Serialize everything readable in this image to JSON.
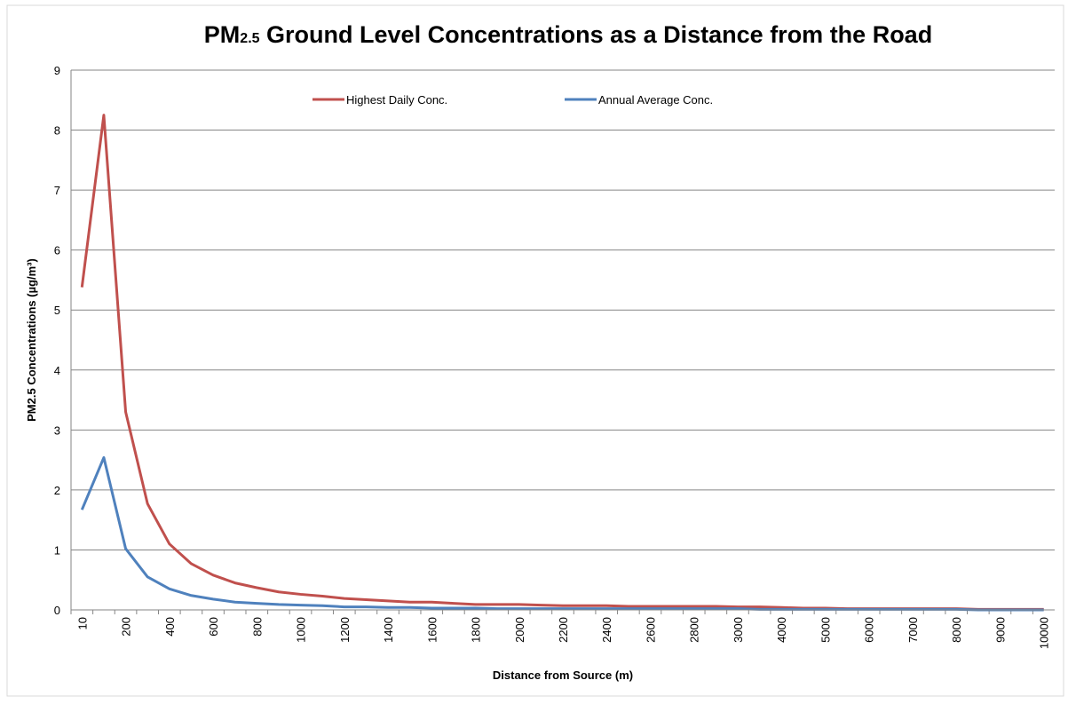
{
  "chart_data": {
    "type": "line",
    "title": "PM",
    "title_subscript": "2.5",
    "title_rest": " Ground Level Concentrations as a Distance from the Road",
    "x_label": "Distance from Source (m)",
    "y_label": "PM2.5 Concentrations (µg/m³)",
    "categories": [
      "10",
      null,
      "200",
      null,
      "400",
      null,
      "600",
      null,
      "800",
      null,
      "1000",
      null,
      "1200",
      null,
      "1400",
      null,
      "1600",
      null,
      "1800",
      null,
      "2000",
      null,
      "2200",
      null,
      "2400",
      null,
      "2600",
      null,
      "2800",
      null,
      "3000",
      null,
      "4000",
      null,
      "5000",
      null,
      "6000",
      null,
      "7000",
      null,
      "8000",
      null,
      "9000",
      null,
      "10000"
    ],
    "series": [
      {
        "name": "Highest Daily Conc.",
        "color": "#c0504d",
        "values": [
          5.38,
          8.25,
          3.3,
          1.77,
          1.1,
          0.77,
          0.58,
          0.45,
          0.37,
          0.3,
          0.26,
          0.23,
          0.19,
          0.17,
          0.15,
          0.13,
          0.13,
          0.11,
          0.09,
          0.09,
          0.09,
          0.08,
          0.07,
          0.07,
          0.07,
          0.06,
          0.06,
          0.06,
          0.06,
          0.06,
          0.05,
          0.05,
          0.04,
          0.03,
          0.03,
          0.02,
          0.02,
          0.02,
          0.02,
          0.02,
          0.02,
          0.01,
          0.01,
          0.01,
          0.01
        ]
      },
      {
        "name": "Annual Average Conc.",
        "color": "#4f81bd",
        "values": [
          1.67,
          2.54,
          1.02,
          0.55,
          0.35,
          0.24,
          0.18,
          0.13,
          0.11,
          0.09,
          0.08,
          0.07,
          0.05,
          0.05,
          0.04,
          0.04,
          0.03,
          0.03,
          0.03,
          0.02,
          0.02,
          0.02,
          0.02,
          0.02,
          0.02,
          0.02,
          0.02,
          0.02,
          0.02,
          0.02,
          0.02,
          0.01,
          0.01,
          0.01,
          0.01,
          0.01,
          0.01,
          0.01,
          0.01,
          0.01,
          0.01,
          0,
          0,
          0,
          0
        ]
      }
    ],
    "ylim": [
      0,
      9
    ],
    "yticks": [
      0,
      1,
      2,
      3,
      4,
      5,
      6,
      7,
      8,
      9
    ],
    "grid": true,
    "legend": "top"
  }
}
